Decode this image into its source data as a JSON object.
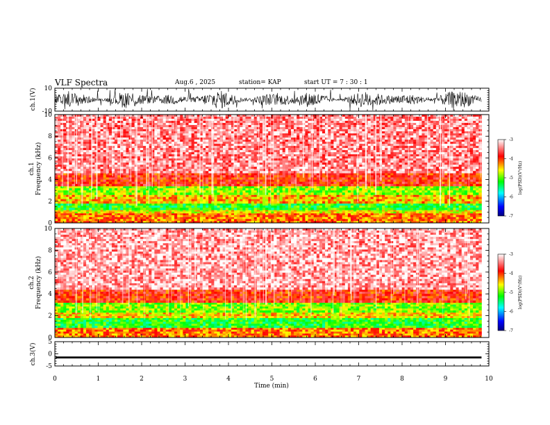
{
  "header": {
    "title": "VLF Spectra",
    "date": "Aug.6  , 2025",
    "station": "station= KAP",
    "start": "start  UT  =   7 : 30 : 1"
  },
  "chart_data": [
    {
      "type": "line",
      "panel": "ch1-waveform",
      "ylabel": "ch.1(V)",
      "ylim": [
        -10,
        10
      ],
      "yticks": [
        "10",
        "-10"
      ],
      "xlim": [
        0,
        10
      ],
      "data_extent_min": [
        0,
        9.83
      ],
      "description_values": {
        "typical_min": -8,
        "typical_max": 8
      }
    },
    {
      "type": "heatmap",
      "panel": "ch1-spectrogram",
      "ylabel": "Frequency  (kHz)",
      "channel_label": "ch.1",
      "ylim": [
        0,
        10
      ],
      "yticks": [
        "0",
        "2",
        "4",
        "6",
        "8",
        "10"
      ],
      "xlim": [
        0,
        10
      ],
      "data_extent_min": [
        0,
        9.83
      ],
      "bands_khz": [
        {
          "low": 0.0,
          "high": 0.9,
          "level": -4.2
        },
        {
          "low": 0.9,
          "high": 1.2,
          "level": -4.6
        },
        {
          "low": 1.2,
          "high": 1.8,
          "level": -5.2
        },
        {
          "low": 1.8,
          "high": 2.6,
          "level": -4.4
        },
        {
          "low": 2.6,
          "high": 3.4,
          "level": -4.9
        },
        {
          "low": 3.4,
          "high": 4.6,
          "level": -3.9
        },
        {
          "low": 4.6,
          "high": 10.0,
          "level": -3.4
        }
      ]
    },
    {
      "type": "heatmap",
      "panel": "ch2-spectrogram",
      "ylabel": "Frequency  (kHz)",
      "channel_label": "ch.2",
      "ylim": [
        0,
        10
      ],
      "yticks": [
        "0",
        "2",
        "4",
        "6",
        "8",
        "10"
      ],
      "xlim": [
        0,
        10
      ],
      "data_extent_min": [
        0,
        9.83
      ],
      "bands_khz": [
        {
          "low": 0.0,
          "high": 0.9,
          "level": -4.2
        },
        {
          "low": 0.9,
          "high": 1.8,
          "level": -5.2
        },
        {
          "low": 1.8,
          "high": 2.3,
          "level": -4.5
        },
        {
          "low": 2.3,
          "high": 3.2,
          "level": -4.9
        },
        {
          "low": 3.2,
          "high": 4.4,
          "level": -3.9
        },
        {
          "low": 4.4,
          "high": 10.0,
          "level": -3.3
        }
      ]
    },
    {
      "type": "line",
      "panel": "ch3-waveform",
      "ylabel": "ch.3(V)",
      "ylim": [
        -5,
        5
      ],
      "yticks": [
        "5",
        "0",
        "-5"
      ],
      "xlim": [
        0,
        10
      ],
      "data_extent_min": [
        0,
        9.83
      ],
      "description_values": {
        "center": -1.5,
        "half_width": 0.4
      }
    }
  ],
  "colorbar": {
    "label": "log(PSD)(V²/Hz)",
    "range": [
      -7,
      -3
    ],
    "ticks": [
      "-3",
      "-4",
      "-5",
      "-6",
      "-7"
    ],
    "colors": [
      "#000080",
      "#0000ff",
      "#00ffff",
      "#00ff00",
      "#ffff00",
      "#ff0000",
      "#ffffff"
    ]
  },
  "x_axis": {
    "label": "Time  (min)",
    "ticks": [
      "0",
      "1",
      "2",
      "3",
      "4",
      "5",
      "6",
      "7",
      "8",
      "9",
      "10"
    ]
  }
}
